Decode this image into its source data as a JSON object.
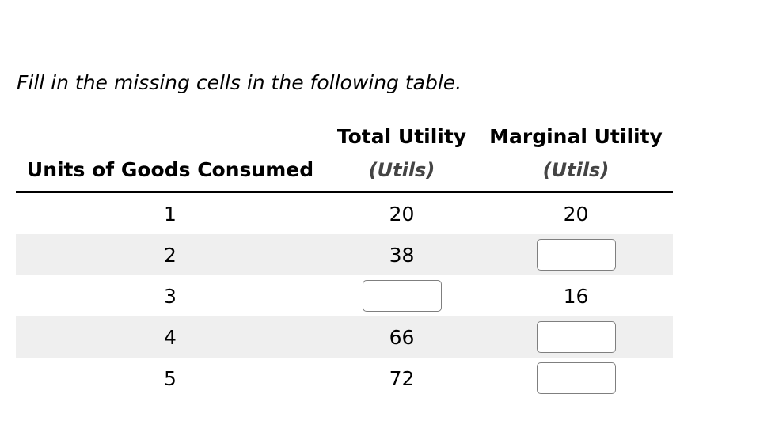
{
  "instruction": "Fill in the missing cells in the following table.",
  "table": {
    "columns": [
      {
        "label": "Units of Goods Consumed",
        "sublabel": ""
      },
      {
        "label": "Total Utility",
        "sublabel": "(Utils)"
      },
      {
        "label": "Marginal Utility",
        "sublabel": "(Utils)"
      }
    ],
    "rows": [
      {
        "units": "1",
        "total": "20",
        "marginal": "20"
      },
      {
        "units": "2",
        "total": "38",
        "marginal": ""
      },
      {
        "units": "3",
        "total": "",
        "marginal": "16"
      },
      {
        "units": "4",
        "total": "66",
        "marginal": ""
      },
      {
        "units": "5",
        "total": "72",
        "marginal": ""
      }
    ],
    "input_cells": [
      {
        "row": "2",
        "column": "Marginal Utility",
        "value": ""
      },
      {
        "row": "3",
        "column": "Total Utility",
        "value": ""
      },
      {
        "row": "4",
        "column": "Marginal Utility",
        "value": ""
      },
      {
        "row": "5",
        "column": "Marginal Utility",
        "value": ""
      }
    ]
  },
  "colors": {
    "page_bg": "#ffffff",
    "text": "#000000",
    "subheader_text": "#444444",
    "header_rule": "#000000",
    "stripe_bg": "#efefef",
    "input_border": "#7f7f7f"
  }
}
